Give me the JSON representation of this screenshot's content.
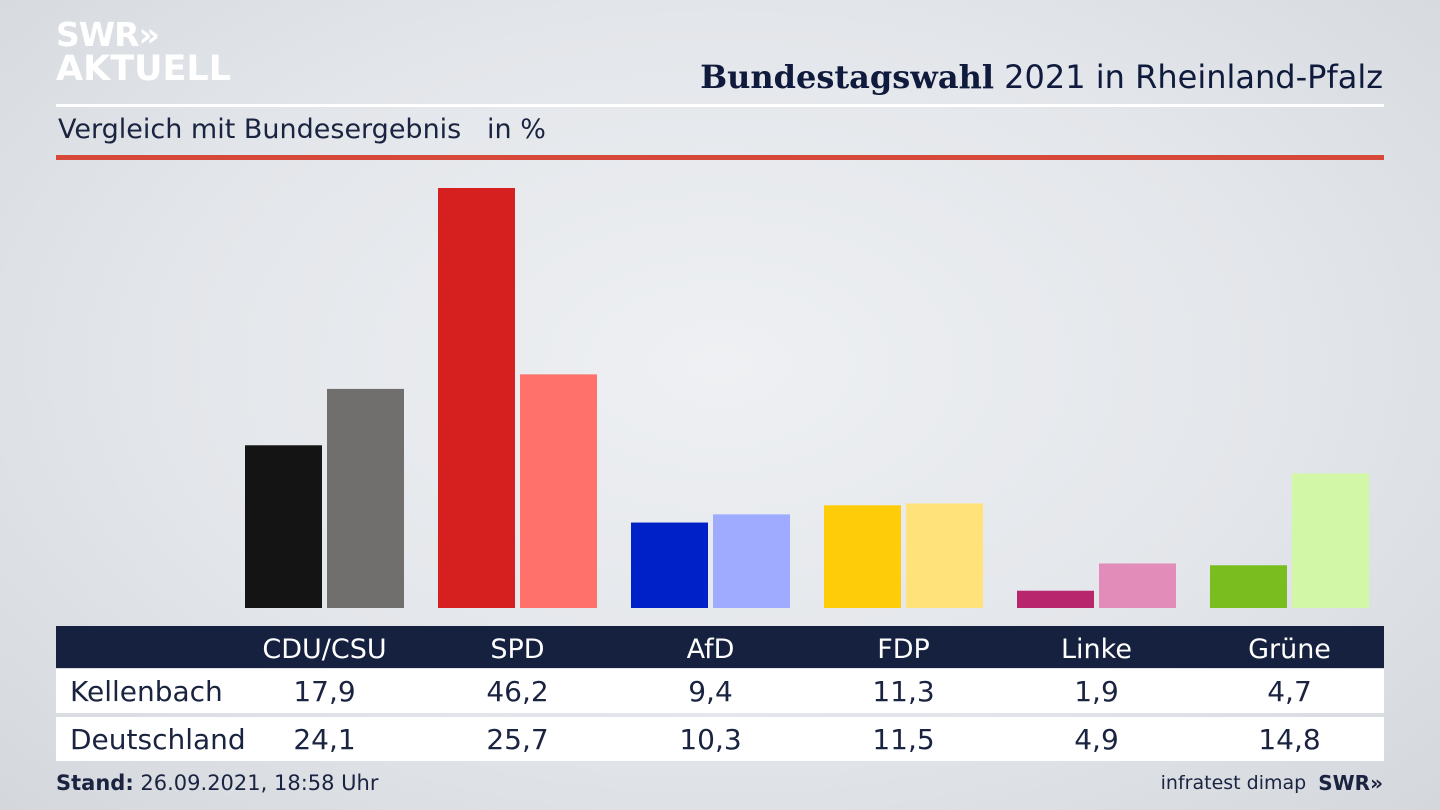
{
  "logo": {
    "line1": "SWR»",
    "line2": "AKTUELL"
  },
  "header": {
    "title_bold": "Bundestagswahl",
    "title_rest": " 2021 in Rheinland-Pfalz",
    "subtitle": "Vergleich mit Bundesergebnis   in %"
  },
  "colors": {
    "Kellenbach": [
      "#141414",
      "#d6201f",
      "#0020c8",
      "#ffcc0a",
      "#b8276e",
      "#79bd1e"
    ],
    "Deutschland": [
      "#716f6d",
      "#ff716a",
      "#9eabff",
      "#ffe27a",
      "#e28cba",
      "#d2f7a7"
    ]
  },
  "chart_data": {
    "type": "bar",
    "categories": [
      "CDU/CSU",
      "SPD",
      "AfD",
      "FDP",
      "Linke",
      "Grüne"
    ],
    "series": [
      {
        "name": "Kellenbach",
        "values": [
          17.9,
          46.2,
          9.4,
          11.3,
          1.9,
          4.7
        ]
      },
      {
        "name": "Deutschland",
        "values": [
          24.1,
          25.7,
          10.3,
          11.5,
          4.9,
          14.8
        ]
      }
    ],
    "display_values": {
      "Kellenbach": [
        "17,9",
        "46,2",
        "9,4",
        "11,3",
        "1,9",
        "4,7"
      ],
      "Deutschland": [
        "24,1",
        "25,7",
        "10,3",
        "11,5",
        "4,9",
        "14,8"
      ]
    }
  },
  "footer": {
    "stand_label": "Stand:",
    "stand_value": " 26.09.2021, 18:58 Uhr",
    "source": "infratest dimap",
    "brand": "SWR»"
  }
}
